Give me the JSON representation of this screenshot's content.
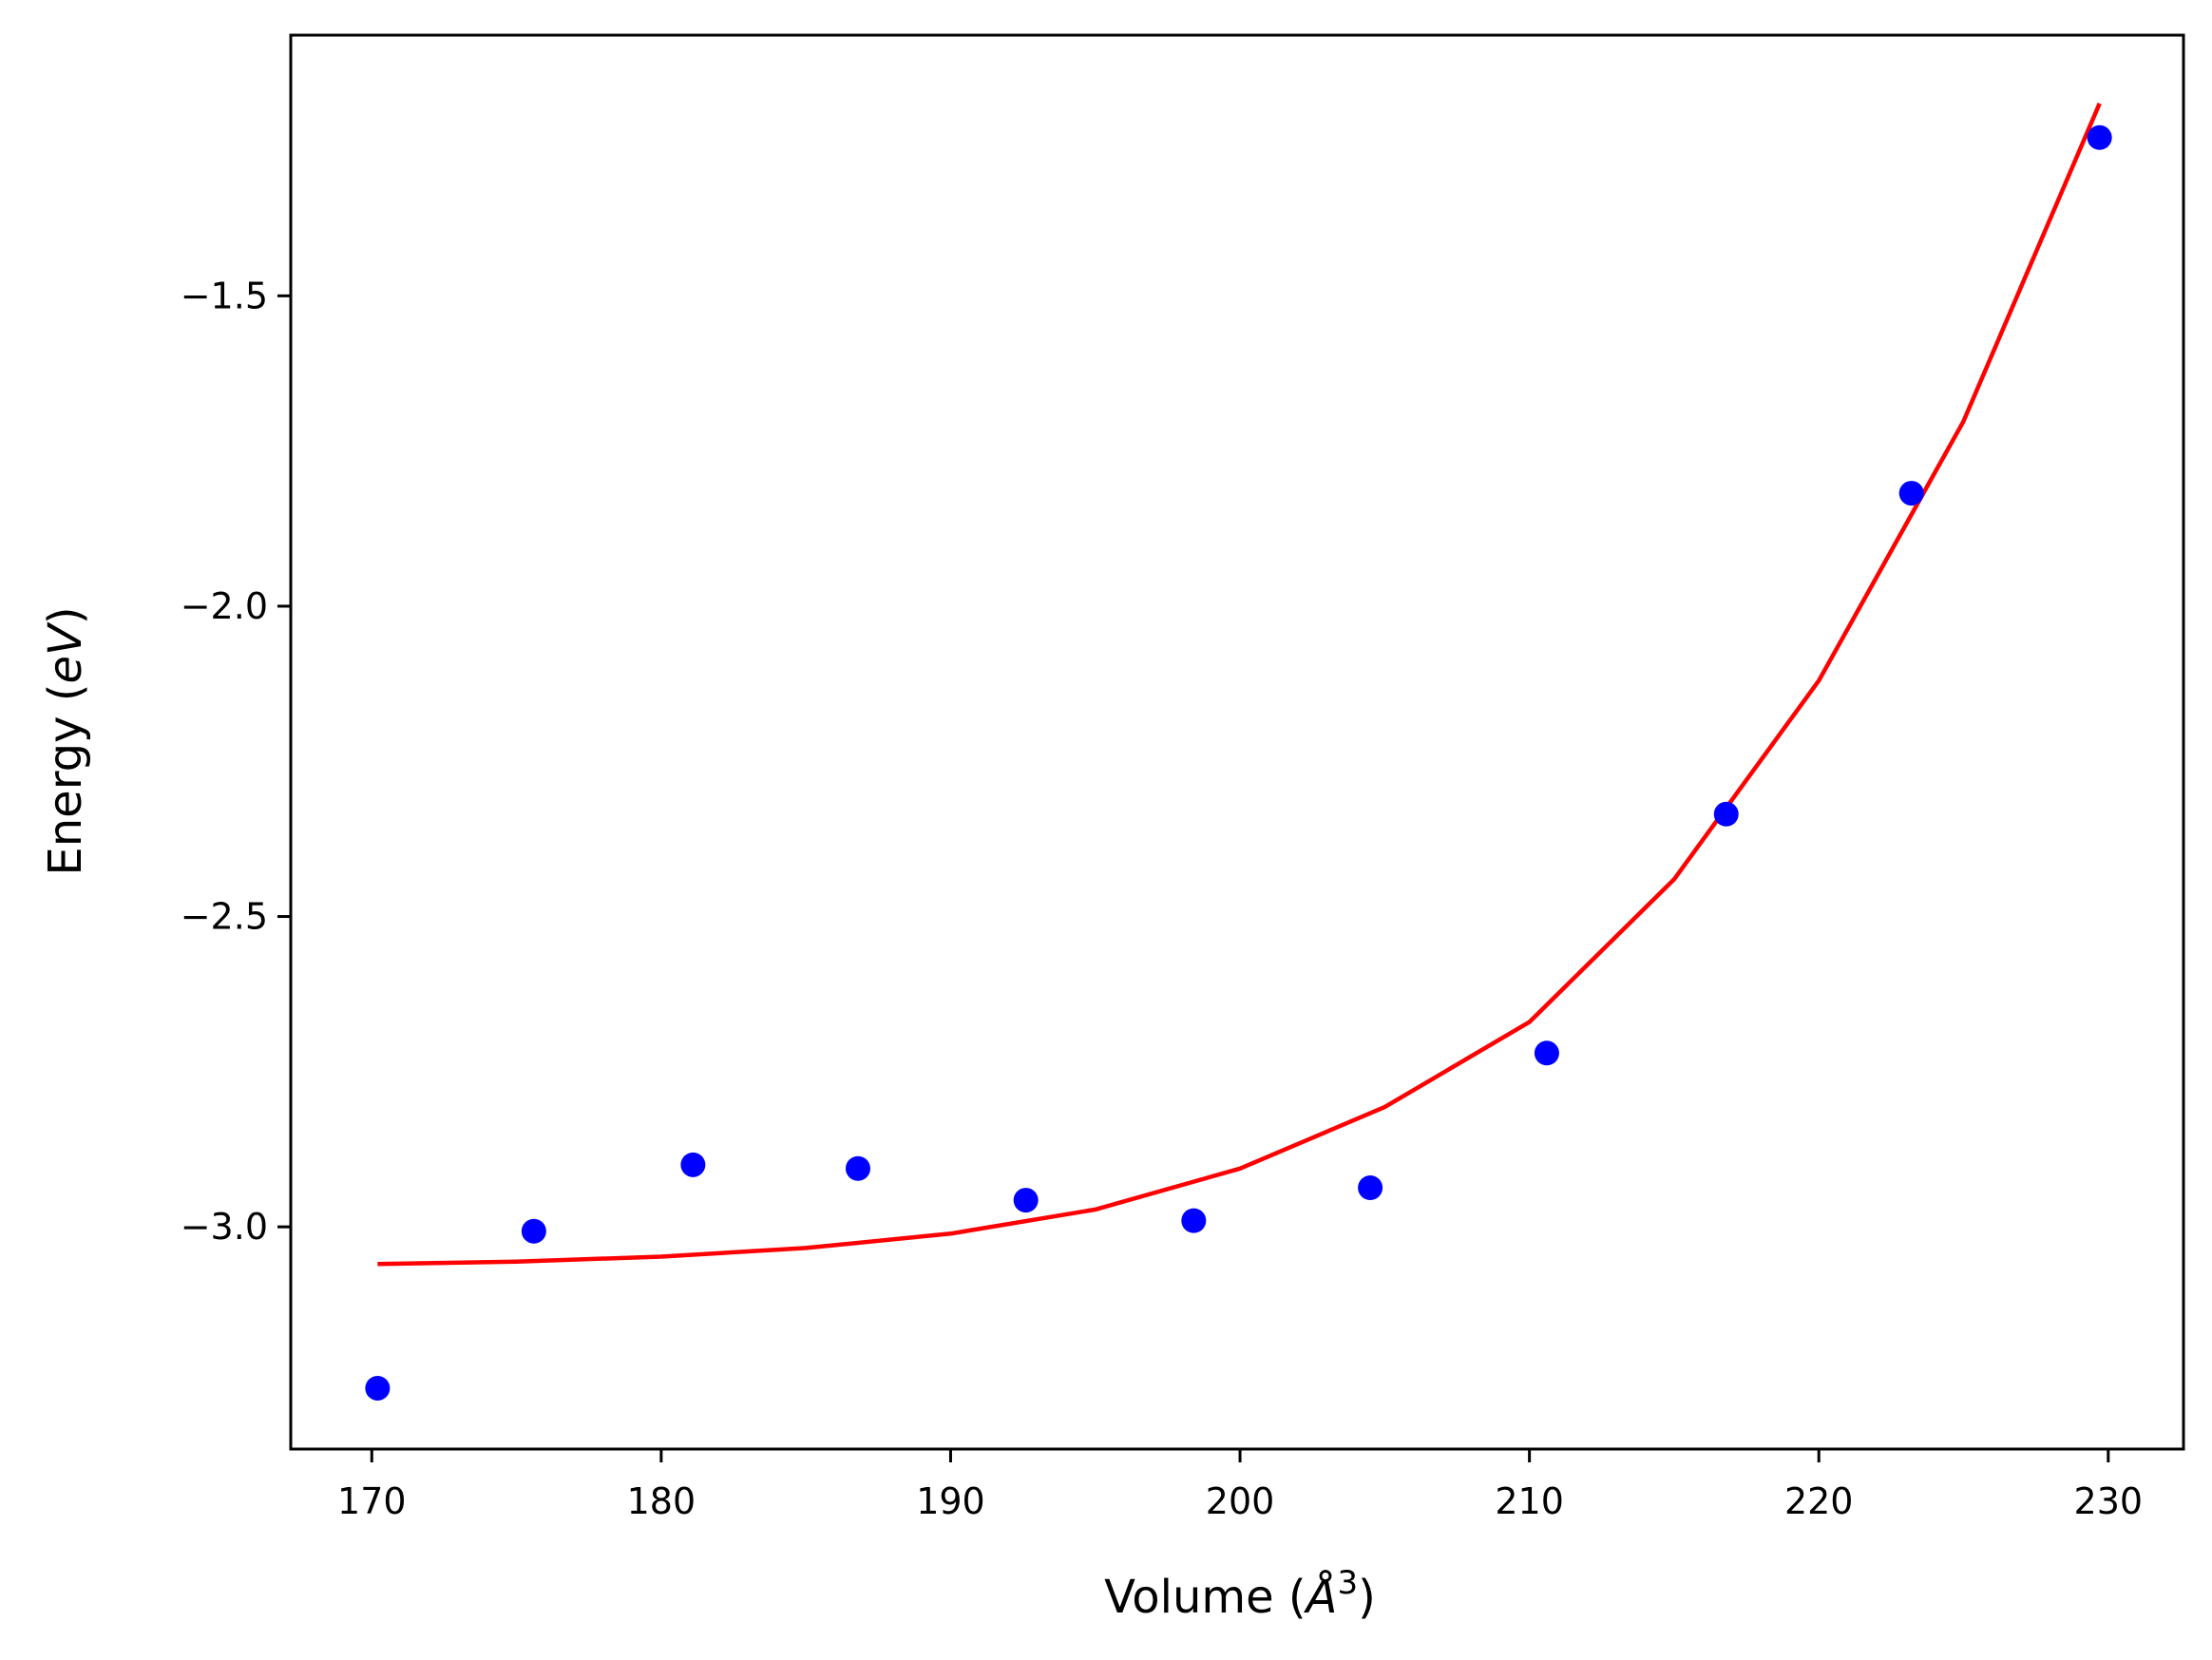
{
  "chart_data": {
    "type": "scatter",
    "title": "",
    "xlabel": {
      "prefix": "Volume (",
      "symbol": "Å",
      "superscript": "3",
      "suffix": ")"
    },
    "ylabel": {
      "prefix": "Energy (",
      "symbol": "eV",
      "suffix": ")"
    },
    "xlim": [
      167.2,
      232.6
    ],
    "ylim": [
      -3.358,
      -1.08
    ],
    "x_ticks": [
      170,
      180,
      190,
      200,
      210,
      220,
      230
    ],
    "x_tick_labels": [
      "170",
      "180",
      "190",
      "200",
      "210",
      "220",
      "230"
    ],
    "y_ticks": [
      -1.5,
      -2.0,
      -2.5,
      -3.0
    ],
    "y_tick_labels": [
      "−1.5",
      "−2.0",
      "−2.5",
      "−3.0"
    ],
    "grid": false,
    "legend": "none",
    "series": [
      {
        "kind": "points",
        "color": "#0000ff",
        "x": [
          170.2,
          175.6,
          181.1,
          186.8,
          192.6,
          198.4,
          204.5,
          210.6,
          216.8,
          223.2,
          229.7
        ],
        "y": [
          -3.26,
          -3.007,
          -2.9,
          -2.906,
          -2.957,
          -2.99,
          -2.937,
          -2.72,
          -2.335,
          -1.818,
          -1.245
        ]
      },
      {
        "kind": "curve",
        "color": "#ff0000",
        "x": [
          170.2,
          175.0,
          180.0,
          185.0,
          190.0,
          195.0,
          200.0,
          205.0,
          210.0,
          215.0,
          220.0,
          225.0,
          229.7
        ],
        "y": [
          -3.06,
          -3.056,
          -3.048,
          -3.034,
          -3.011,
          -2.972,
          -2.906,
          -2.807,
          -2.67,
          -2.44,
          -2.12,
          -1.702,
          -1.19
        ]
      }
    ]
  }
}
